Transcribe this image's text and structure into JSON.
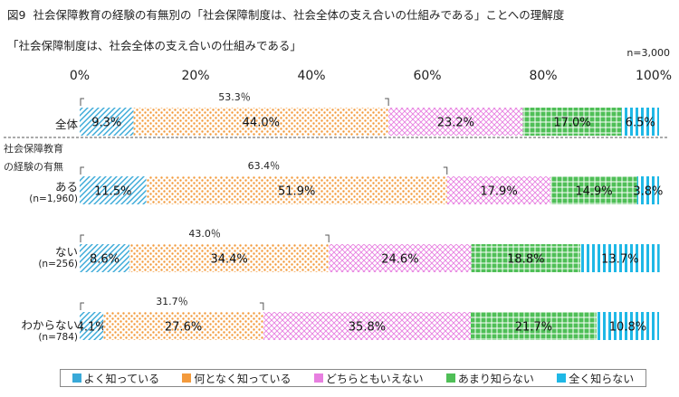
{
  "figure": {
    "number": "図9",
    "title": "社会保障教育の経験の有無別の「社会保障制度は、社会全体の支え合いの仕組みである」ことへの理解度",
    "subtitle": "「社会保障制度は、社会全体の支え合いの仕組みである」",
    "sample": "n=3,000"
  },
  "group_label_line1": "社会保障教育",
  "group_label_line2": "の経験の有無",
  "colors": {
    "よく知っている": "#39a9d8",
    "何となく知っている": "#f39a3c",
    "どちらともいえない": "#e77fe0",
    "あまり知らない": "#4fbf57",
    "全く知らない": "#1fb8e6"
  },
  "chart_data": {
    "type": "bar",
    "orientation": "horizontal",
    "stacked": true,
    "xlim": [
      0,
      100
    ],
    "x_ticks": [
      "0%",
      "20%",
      "40%",
      "60%",
      "80%",
      "100%"
    ],
    "legend_position": "bottom",
    "categories": [
      {
        "label": "全体",
        "n": ""
      },
      {
        "label": "ある",
        "n": "(n=1,960)"
      },
      {
        "label": "ない",
        "n": "(n=256)"
      },
      {
        "label": "わからない",
        "n": "(n=784)"
      }
    ],
    "series": [
      {
        "name": "よく知っている",
        "values": [
          9.3,
          11.5,
          8.6,
          4.1
        ],
        "labels": [
          "9.3%",
          "11.5%",
          "8.6%",
          "4.1%"
        ]
      },
      {
        "name": "何となく知っている",
        "values": [
          44.0,
          51.9,
          34.4,
          27.6
        ],
        "labels": [
          "44.0%",
          "51.9%",
          "34.4%",
          "27.6%"
        ]
      },
      {
        "name": "どちらともいえない",
        "values": [
          23.2,
          17.9,
          24.6,
          35.8
        ],
        "labels": [
          "23.2%",
          "17.9%",
          "24.6%",
          "35.8%"
        ]
      },
      {
        "name": "あまり知らない",
        "values": [
          17.0,
          14.9,
          18.8,
          21.7
        ],
        "labels": [
          "17.0%",
          "14.9%",
          "18.8%",
          "21.7%"
        ]
      },
      {
        "name": "全く知らない",
        "values": [
          6.5,
          3.8,
          13.7,
          10.8
        ],
        "labels": [
          "6.5%",
          "3.8%",
          "13.7%",
          "10.8%"
        ]
      }
    ],
    "bracket_totals": [
      {
        "value": 53.3,
        "label": "53.3％"
      },
      {
        "value": 63.4,
        "label": "63.4％"
      },
      {
        "value": 43.0,
        "label": "43.0％"
      },
      {
        "value": 31.7,
        "label": "31.7％"
      }
    ]
  }
}
